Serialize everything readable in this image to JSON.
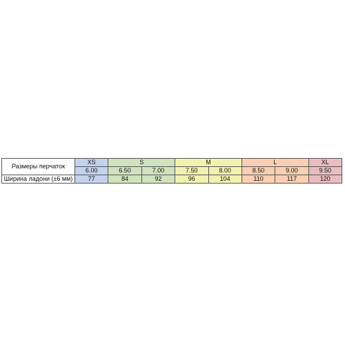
{
  "table": {
    "size_label": "Размеры перчаток",
    "width_label": "Ширина ладони (±6 мм)",
    "groups": [
      {
        "size": "XS",
        "color": "#c3d3ee",
        "sizes": [
          "6.00"
        ],
        "widths": [
          "77"
        ]
      },
      {
        "size": "S",
        "color": "#cfe3bd",
        "sizes": [
          "6.50",
          "7.00"
        ],
        "widths": [
          "84",
          "92"
        ]
      },
      {
        "size": "M",
        "color": "#f3f1b0",
        "sizes": [
          "7.50",
          "8.00"
        ],
        "widths": [
          "96",
          "104"
        ]
      },
      {
        "size": "L",
        "color": "#f8cfb2",
        "sizes": [
          "8.50",
          "9.00"
        ],
        "widths": [
          "110",
          "117"
        ]
      },
      {
        "size": "XL",
        "color": "#e9bcc0",
        "sizes": [
          "9.50"
        ],
        "widths": [
          "120"
        ]
      }
    ]
  }
}
